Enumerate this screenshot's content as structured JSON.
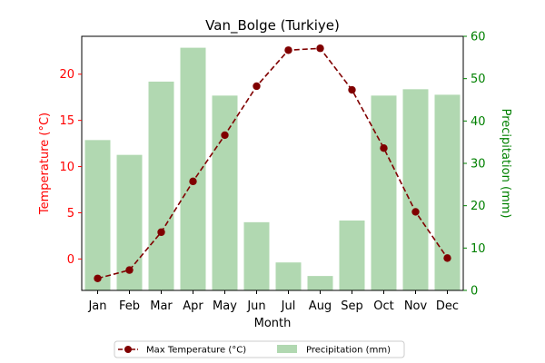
{
  "chart_data": {
    "type": "bar",
    "title": "Van_Bolge (Turkiye)",
    "xlabel": "Month",
    "categories": [
      "Jan",
      "Feb",
      "Mar",
      "Apr",
      "May",
      "Jun",
      "Jul",
      "Aug",
      "Sep",
      "Oct",
      "Nov",
      "Dec"
    ],
    "y_left": {
      "label": "Temperature (°C)",
      "color": "#ff0000",
      "ylim": [
        -3.4,
        24.1
      ],
      "ticks": [
        0,
        5,
        10,
        15,
        20
      ]
    },
    "y_right": {
      "label": "Precipitation (mm)",
      "color": "#008000",
      "ylim": [
        0,
        60
      ],
      "ticks": [
        0,
        10,
        20,
        30,
        40,
        50,
        60
      ]
    },
    "series": [
      {
        "name": "Max Temperature (°C)",
        "type": "line",
        "axis": "left",
        "color": "#800000",
        "line_style": "dashed",
        "marker": "circle",
        "values": [
          -2.1,
          -1.2,
          2.9,
          8.4,
          13.4,
          18.7,
          22.6,
          22.8,
          18.3,
          12.0,
          5.1,
          0.1
        ]
      },
      {
        "name": "Precipitation (mm)",
        "type": "bar",
        "axis": "right",
        "color": "#b1d8b1",
        "values": [
          35.5,
          32.0,
          49.3,
          57.3,
          46.0,
          16.1,
          6.6,
          3.4,
          16.5,
          46.0,
          47.5,
          46.2
        ]
      }
    ],
    "legend_position": "bottom-center",
    "grid": false
  }
}
